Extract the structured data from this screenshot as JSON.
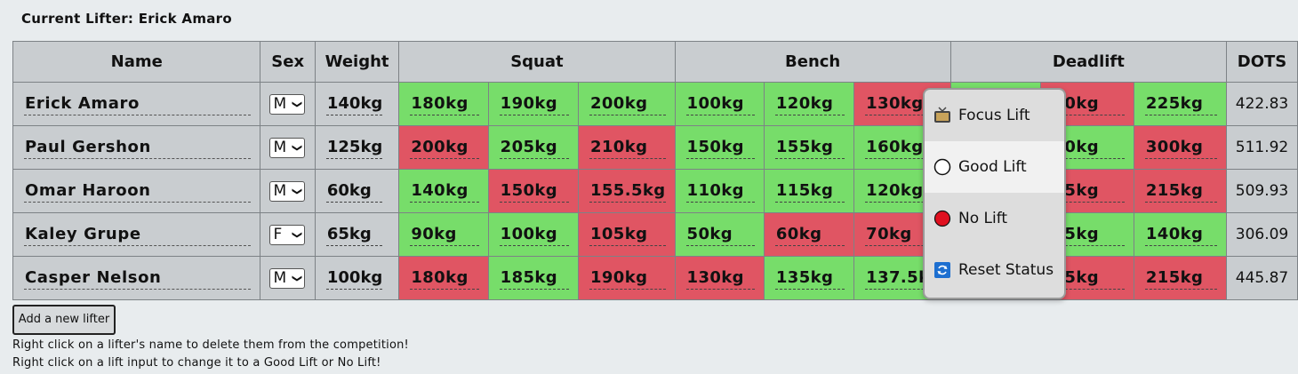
{
  "current_lifter": {
    "label": "Current Lifter:",
    "name": "Erick Amaro"
  },
  "columns": {
    "name": "Name",
    "sex": "Sex",
    "weight": "Weight",
    "squat": "Squat",
    "bench": "Bench",
    "deadlift": "Deadlift",
    "dots": "DOTS"
  },
  "lifters": [
    {
      "name": "Erick Amaro",
      "sex": "M",
      "weight": "140kg",
      "squat": [
        {
          "v": "180kg",
          "s": "good"
        },
        {
          "v": "190kg",
          "s": "good"
        },
        {
          "v": "200kg",
          "s": "good"
        }
      ],
      "bench": [
        {
          "v": "100kg",
          "s": "good"
        },
        {
          "v": "120kg",
          "s": "good"
        },
        {
          "v": "130kg",
          "s": "bad"
        }
      ],
      "deadlift": [
        {
          "v": "",
          "s": "good"
        },
        {
          "v": "20kg",
          "s": "bad"
        },
        {
          "v": "225kg",
          "s": "good"
        }
      ],
      "dots": "422.83"
    },
    {
      "name": "Paul Gershon",
      "sex": "M",
      "weight": "125kg",
      "squat": [
        {
          "v": "200kg",
          "s": "bad"
        },
        {
          "v": "205kg",
          "s": "good"
        },
        {
          "v": "210kg",
          "s": "bad"
        }
      ],
      "bench": [
        {
          "v": "150kg",
          "s": "good"
        },
        {
          "v": "155kg",
          "s": "good"
        },
        {
          "v": "160kg",
          "s": "good"
        }
      ],
      "deadlift": [
        {
          "v": "",
          "s": "good"
        },
        {
          "v": "30kg",
          "s": "good"
        },
        {
          "v": "300kg",
          "s": "bad"
        }
      ],
      "dots": "511.92"
    },
    {
      "name": "Omar Haroon",
      "sex": "M",
      "weight": "60kg",
      "squat": [
        {
          "v": "140kg",
          "s": "good"
        },
        {
          "v": "150kg",
          "s": "bad"
        },
        {
          "v": "155.5kg",
          "s": "bad"
        }
      ],
      "bench": [
        {
          "v": "110kg",
          "s": "good"
        },
        {
          "v": "115kg",
          "s": "good"
        },
        {
          "v": "120kg",
          "s": "good"
        }
      ],
      "deadlift": [
        {
          "v": "",
          "s": "good"
        },
        {
          "v": "05kg",
          "s": "bad"
        },
        {
          "v": "215kg",
          "s": "bad"
        }
      ],
      "dots": "509.93"
    },
    {
      "name": "Kaley Grupe",
      "sex": "F",
      "weight": "65kg",
      "squat": [
        {
          "v": "90kg",
          "s": "good"
        },
        {
          "v": "100kg",
          "s": "good"
        },
        {
          "v": "105kg",
          "s": "bad"
        }
      ],
      "bench": [
        {
          "v": "50kg",
          "s": "good"
        },
        {
          "v": "60kg",
          "s": "bad"
        },
        {
          "v": "70kg",
          "s": "bad"
        }
      ],
      "deadlift": [
        {
          "v": "",
          "s": "good"
        },
        {
          "v": "35kg",
          "s": "good"
        },
        {
          "v": "140kg",
          "s": "good"
        }
      ],
      "dots": "306.09"
    },
    {
      "name": "Casper Nelson",
      "sex": "M",
      "weight": "100kg",
      "squat": [
        {
          "v": "180kg",
          "s": "bad"
        },
        {
          "v": "185kg",
          "s": "good"
        },
        {
          "v": "190kg",
          "s": "bad"
        }
      ],
      "bench": [
        {
          "v": "130kg",
          "s": "bad"
        },
        {
          "v": "135kg",
          "s": "good"
        },
        {
          "v": "137.5kg",
          "s": "good"
        }
      ],
      "deadlift": [
        {
          "v": "",
          "s": "good"
        },
        {
          "v": "05kg",
          "s": "bad"
        },
        {
          "v": "215kg",
          "s": "bad"
        }
      ],
      "dots": "445.87"
    }
  ],
  "add_button": "Add a new lifter",
  "hints": [
    "Right click on a lifter's name to delete them from the competition!",
    "Right click on a lift input to change it to a Good Lift or No Lift!"
  ],
  "context_menu": [
    {
      "label": "Focus Lift",
      "icon": "tv-icon"
    },
    {
      "label": "Good Lift",
      "icon": "empty-circle-icon"
    },
    {
      "label": "No Lift",
      "icon": "red-circle-icon"
    },
    {
      "label": "Reset Status",
      "icon": "refresh-icon"
    }
  ],
  "colors": {
    "good": "#77dd6a",
    "bad": "#e05563",
    "cell": "#c9cdd0"
  }
}
